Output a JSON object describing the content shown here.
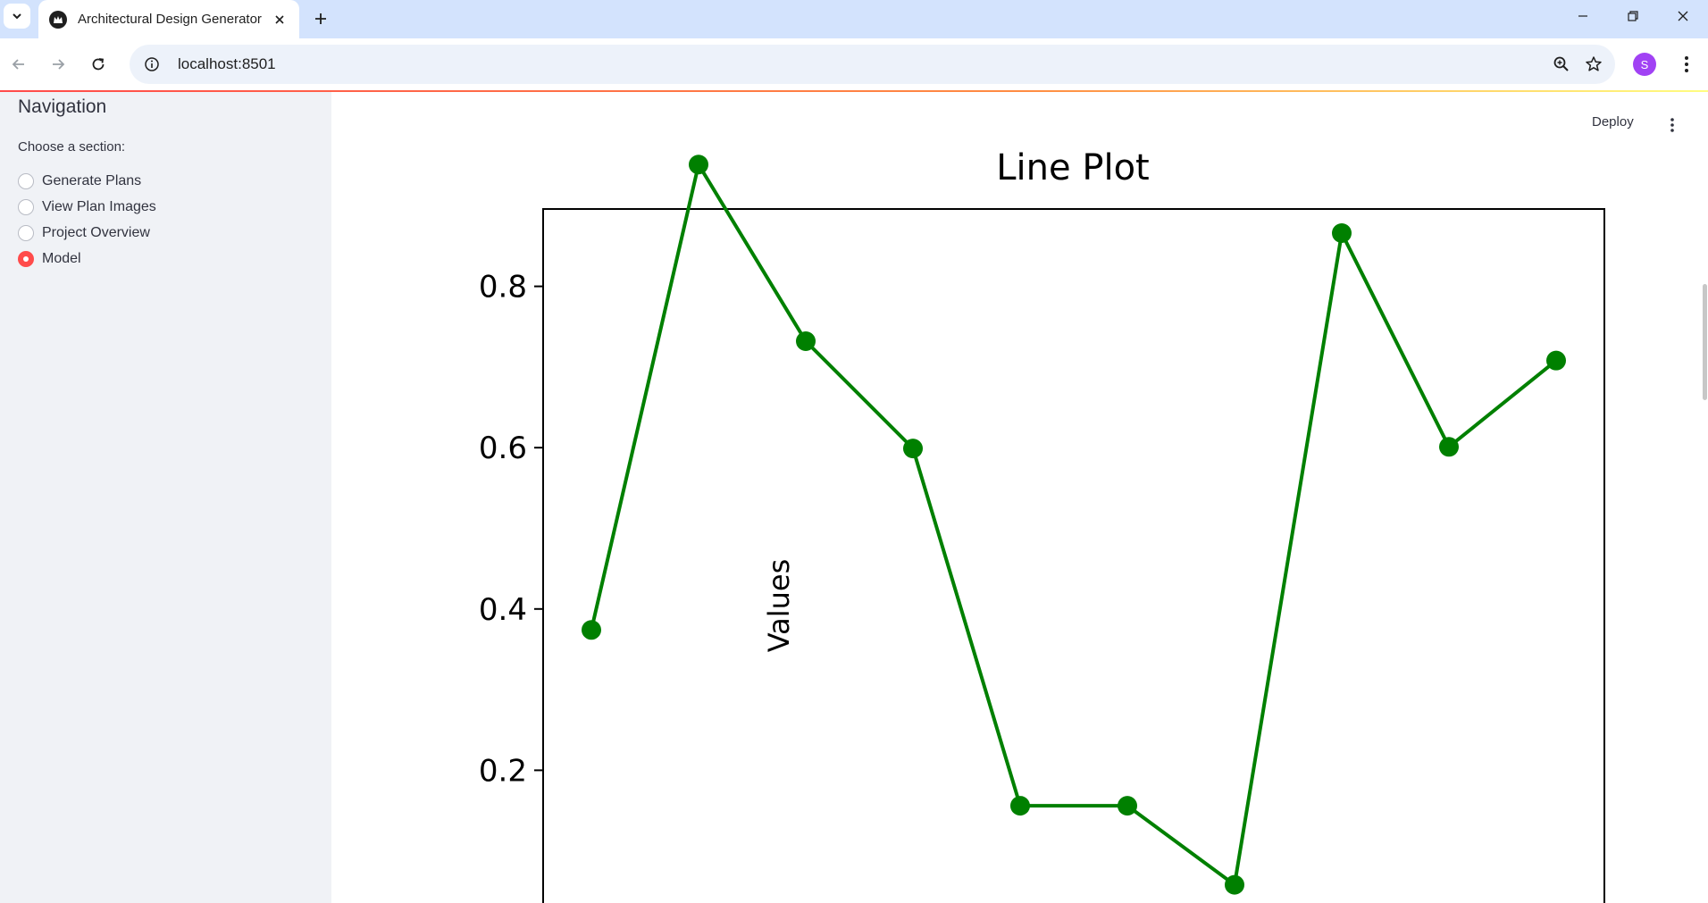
{
  "browser": {
    "tab_title": "Architectural Design Generator",
    "url": "localhost:8501",
    "profile_initial": "S"
  },
  "app": {
    "deploy_label": "Deploy",
    "sidebar": {
      "title": "Navigation",
      "radio_label": "Choose a section:",
      "options": [
        {
          "label": "Generate Plans",
          "selected": false
        },
        {
          "label": "View Plan Images",
          "selected": false
        },
        {
          "label": "Project Overview",
          "selected": false
        },
        {
          "label": "Model",
          "selected": true
        }
      ]
    }
  },
  "chart_data": {
    "type": "line",
    "title": "Line Plot",
    "ylabel": "Values",
    "xlabel": "",
    "x": [
      0,
      1,
      2,
      3,
      4,
      5,
      6,
      7,
      8,
      9
    ],
    "values": [
      0.374,
      0.951,
      0.732,
      0.599,
      0.156,
      0.156,
      0.058,
      0.866,
      0.601,
      0.708
    ],
    "ylim": [
      0.0,
      1.0
    ],
    "yticks": [
      0.2,
      0.4,
      0.6,
      0.8
    ],
    "ytick_labels": [
      "0.2",
      "0.4",
      "0.6",
      "0.8"
    ],
    "line_color": "#008000",
    "marker": "circle",
    "grid": false
  }
}
